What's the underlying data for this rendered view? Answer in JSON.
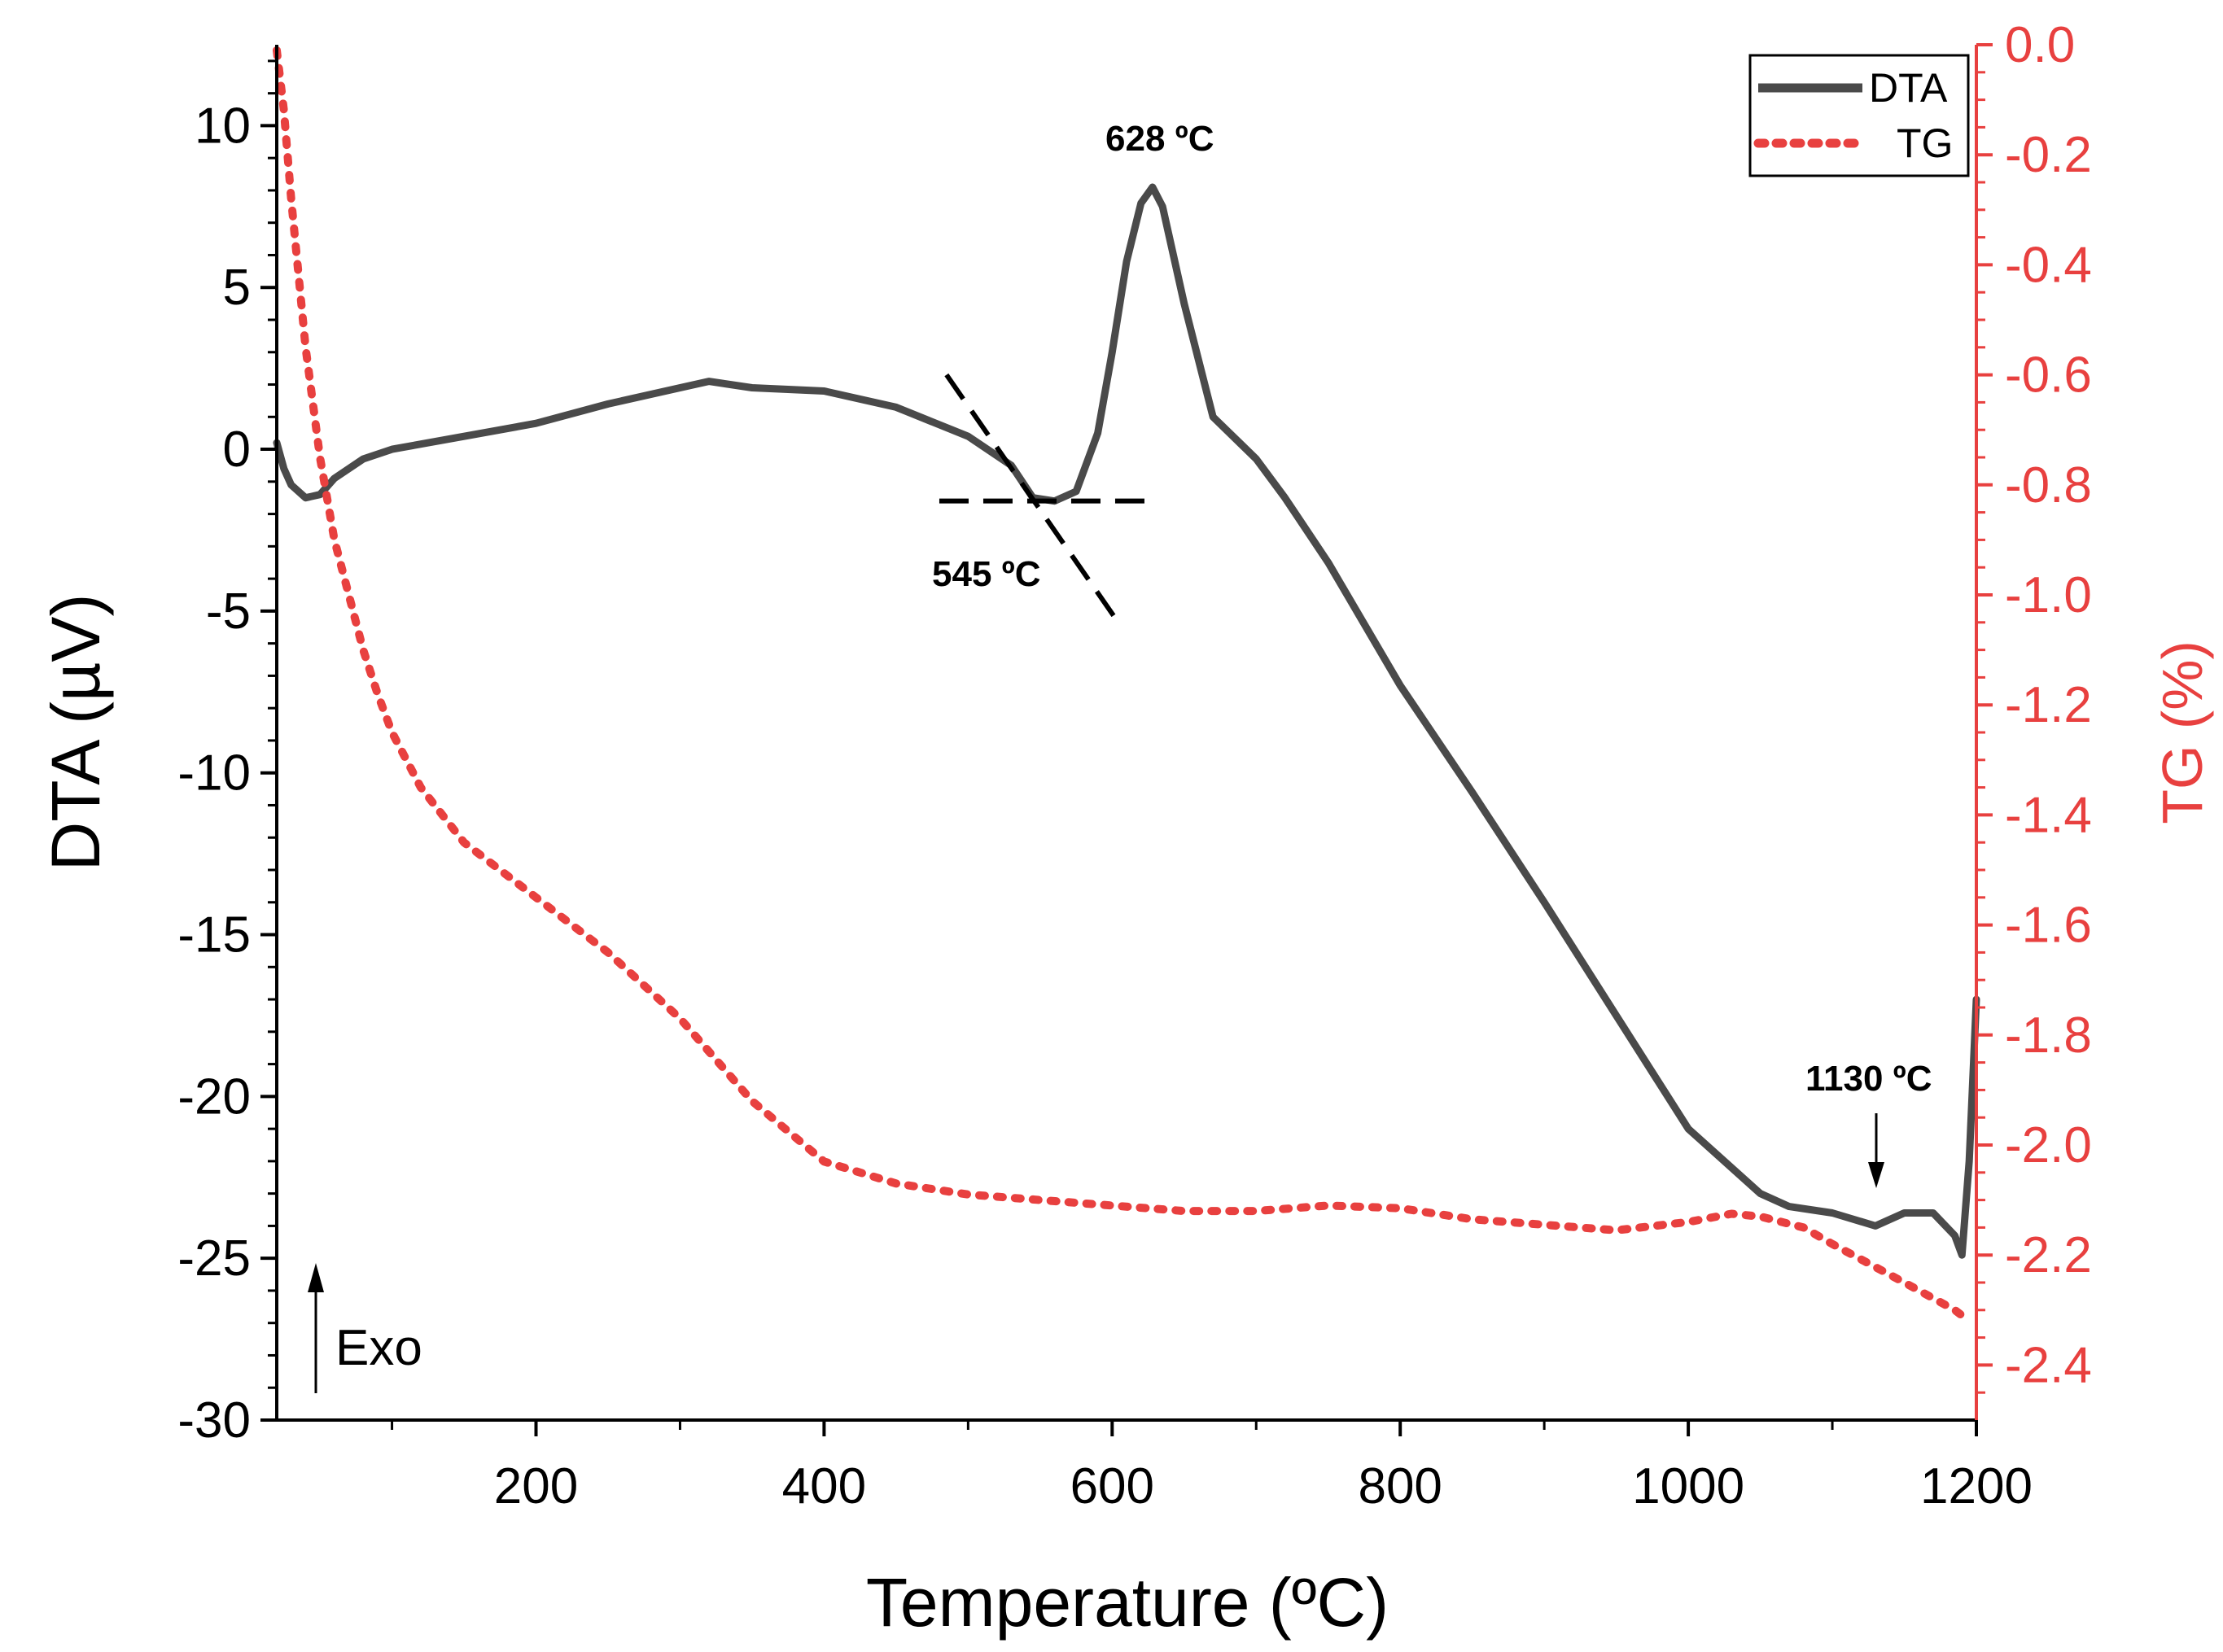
{
  "chart_data": {
    "type": "line",
    "xlabel": "Temperature (ºC)",
    "ylabel_left": "DTA (µV)",
    "ylabel_right": "TG (%)",
    "xlim": [
      20,
      1200
    ],
    "ylim_left": [
      -30,
      12.5
    ],
    "ylim_right": [
      -2.5,
      0
    ],
    "x_ticks": [
      200,
      400,
      600,
      800,
      1000,
      1200
    ],
    "y_left_ticks": [
      10,
      5,
      0,
      -5,
      -10,
      -15,
      -20,
      -25,
      -30
    ],
    "y_right_ticks": [
      "0.0",
      "-0.2",
      "-0.4",
      "-0.6",
      "-0.8",
      "-1.0",
      "-1.2",
      "-1.4",
      "-1.6",
      "-1.8",
      "-2.0",
      "-2.2",
      "-2.4"
    ],
    "legend_position": "top-right",
    "colors": {
      "dta": "#4a4a4a",
      "tg": "#e8403f",
      "right_axis": "#e8403f",
      "annotation": "#000000"
    },
    "series": [
      {
        "name": "DTA",
        "axis": "left",
        "style": "solid",
        "x": [
          20,
          25,
          30,
          40,
          50,
          60,
          80,
          100,
          150,
          200,
          250,
          300,
          320,
          350,
          400,
          450,
          500,
          530,
          545,
          560,
          575,
          590,
          600,
          610,
          620,
          628,
          635,
          650,
          670,
          700,
          720,
          750,
          800,
          850,
          900,
          950,
          1000,
          1050,
          1070,
          1100,
          1130,
          1150,
          1170,
          1185,
          1190,
          1195,
          1200
        ],
        "values": [
          0.2,
          -0.6,
          -1.1,
          -1.5,
          -1.4,
          -0.9,
          -0.3,
          0.0,
          0.4,
          0.8,
          1.4,
          1.9,
          2.1,
          1.9,
          1.8,
          1.3,
          0.4,
          -0.5,
          -1.5,
          -1.6,
          -1.3,
          0.5,
          3.0,
          5.8,
          7.6,
          8.1,
          7.5,
          4.5,
          1.0,
          -0.3,
          -1.5,
          -3.5,
          -7.3,
          -10.6,
          -14.0,
          -17.5,
          -21.0,
          -23.0,
          -23.4,
          -23.6,
          -24.0,
          -23.6,
          -23.6,
          -24.3,
          -24.9,
          -22.0,
          -17.0
        ]
      },
      {
        "name": "TG",
        "axis": "right",
        "style": "dotted",
        "x": [
          20,
          25,
          30,
          40,
          50,
          60,
          70,
          80,
          90,
          100,
          120,
          150,
          200,
          250,
          300,
          350,
          400,
          450,
          500,
          550,
          600,
          650,
          700,
          750,
          800,
          850,
          900,
          950,
          1000,
          1030,
          1050,
          1080,
          1100,
          1150,
          1185,
          1195
        ],
        "values": [
          -0.01,
          -0.12,
          -0.28,
          -0.55,
          -0.75,
          -0.9,
          -1.0,
          -1.1,
          -1.18,
          -1.25,
          -1.35,
          -1.45,
          -1.55,
          -1.65,
          -1.77,
          -1.92,
          -2.03,
          -2.07,
          -2.09,
          -2.1,
          -2.11,
          -2.12,
          -2.12,
          -2.11,
          -2.115,
          -2.135,
          -2.145,
          -2.155,
          -2.14,
          -2.125,
          -2.13,
          -2.15,
          -2.18,
          -2.25,
          -2.3,
          -2.32
        ]
      }
    ],
    "legend": [
      {
        "label": "DTA",
        "series": "DTA"
      },
      {
        "label": "TG",
        "series": "TG"
      }
    ],
    "annotations": {
      "peak_label": "628 ºC",
      "onset_label": "545 ºC",
      "event_label": "1130 ºC",
      "exo_label": "Exo",
      "peak_x": 628,
      "onset_x": 545,
      "event_x": 1130
    }
  }
}
